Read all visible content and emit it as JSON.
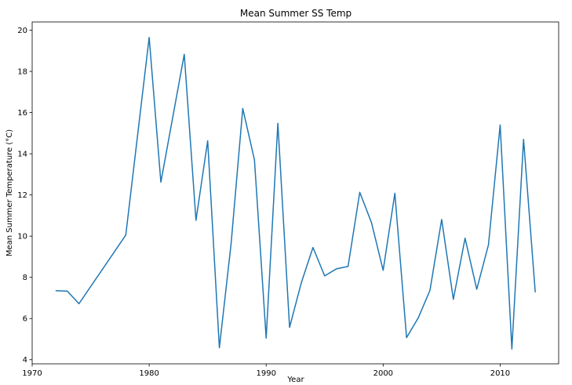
{
  "chart_data": {
    "type": "line",
    "title": "Mean Summer SS Temp",
    "xlabel": "Year",
    "ylabel": "Mean Summer Temperature (°C)",
    "xlim": [
      1970,
      2015
    ],
    "ylim": [
      3.8,
      20.4
    ],
    "xticks": [
      1970,
      1980,
      1990,
      2000,
      2010
    ],
    "yticks": [
      4,
      6,
      8,
      10,
      12,
      14,
      16,
      18,
      20
    ],
    "grid": false,
    "legend": "none",
    "series": [
      {
        "color": "#1f77b4",
        "x": [
          1972,
          1973,
          1974,
          1978,
          1980,
          1981,
          1983,
          1984,
          1985,
          1986,
          1987,
          1988,
          1989,
          1990,
          1991,
          1992,
          1993,
          1994,
          1995,
          1996,
          1997,
          1998,
          1999,
          2000,
          2001,
          2002,
          2003,
          2004,
          2005,
          2006,
          2007,
          2008,
          2009,
          2010,
          2011,
          2012,
          2013
        ],
        "y": [
          7.35,
          7.33,
          6.72,
          10.05,
          19.65,
          12.62,
          18.83,
          10.77,
          14.63,
          4.58,
          9.62,
          16.2,
          13.7,
          5.05,
          15.48,
          5.57,
          7.73,
          9.45,
          8.07,
          8.41,
          8.53,
          12.13,
          10.66,
          8.34,
          12.08,
          5.07,
          6.03,
          7.37,
          10.81,
          6.93,
          9.9,
          7.42,
          9.58,
          15.4,
          4.52,
          14.7,
          7.27
        ]
      }
    ]
  }
}
